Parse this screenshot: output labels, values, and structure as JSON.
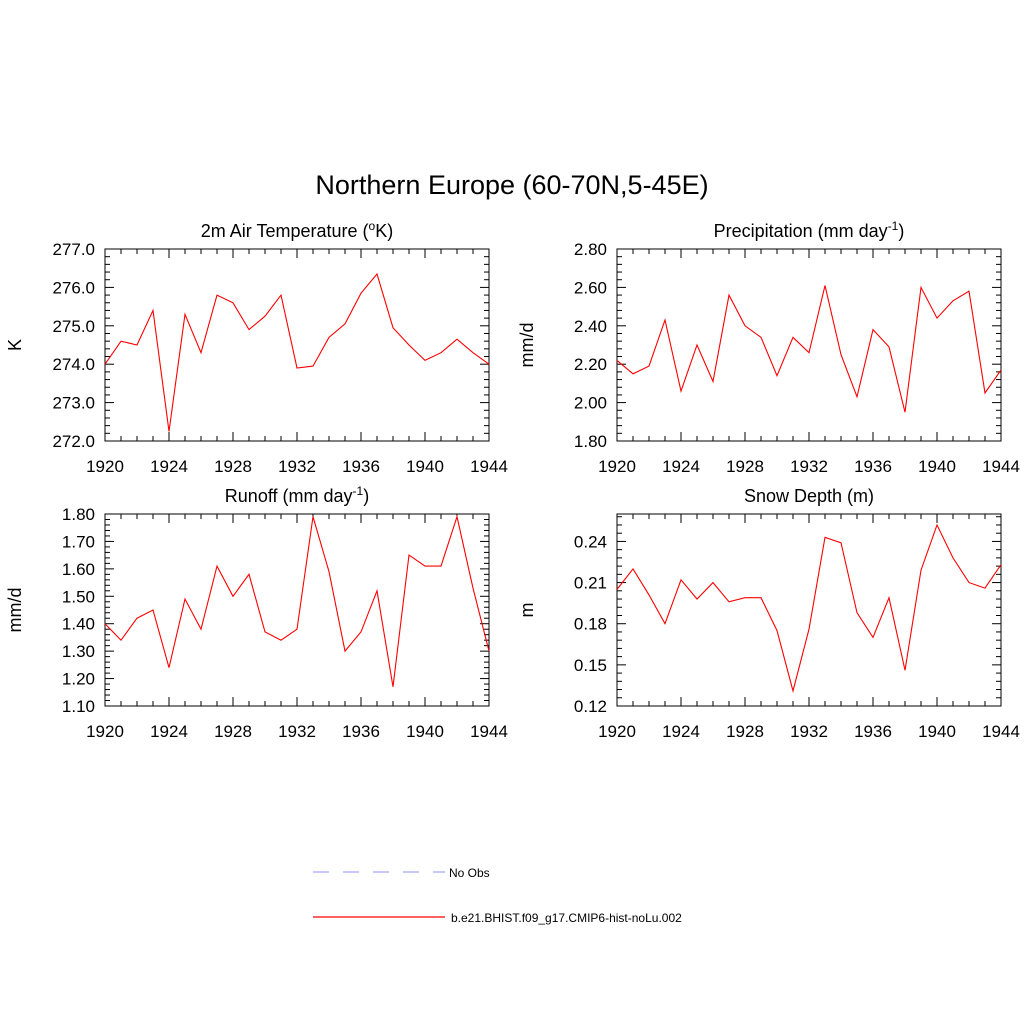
{
  "figure": {
    "title": "Northern Europe (60-70N,5-45E)"
  },
  "colors": {
    "model_line": "#ff0000",
    "obs_line": "#a9a9f5",
    "axis": "#000000",
    "background": "#ffffff"
  },
  "legend": [
    {
      "label": "No Obs",
      "style": "dashed",
      "color": "#a9a9f5"
    },
    {
      "label": "b.e21.BHIST.f09_g17.CMIP6-hist-noLu.002",
      "style": "solid",
      "color": "#ff0000"
    }
  ],
  "chart_data": [
    {
      "type": "line",
      "title": "2m Air Temperature (",
      "title_super": "o",
      "title_after": "K)",
      "xlabel": "",
      "ylabel": "K",
      "xlim": [
        1920,
        1944
      ],
      "ylim": [
        272.0,
        277.0
      ],
      "xticks": [
        "1920",
        "1924",
        "1928",
        "1932",
        "1936",
        "1940",
        "1944"
      ],
      "yticks": [
        "272.0",
        "273.0",
        "274.0",
        "275.0",
        "276.0",
        "277.0"
      ],
      "x": [
        1920,
        1921,
        1922,
        1923,
        1924,
        1925,
        1926,
        1927,
        1928,
        1929,
        1930,
        1931,
        1932,
        1933,
        1934,
        1935,
        1936,
        1937,
        1938,
        1939,
        1940,
        1941,
        1942,
        1943,
        1944
      ],
      "series": [
        {
          "name": "b.e21.BHIST.f09_g17.CMIP6-hist-noLu.002",
          "values": [
            274.0,
            274.6,
            274.5,
            275.4,
            272.25,
            275.3,
            274.3,
            275.8,
            275.6,
            274.9,
            275.25,
            275.8,
            273.9,
            273.95,
            274.7,
            275.05,
            275.85,
            276.35,
            274.95,
            274.5,
            274.1,
            274.3,
            274.65,
            274.3,
            274.0
          ]
        }
      ]
    },
    {
      "type": "line",
      "title": "Precipitation (mm day",
      "title_super": "-1",
      "title_after": ")",
      "xlabel": "",
      "ylabel": "mm/d",
      "xlim": [
        1920,
        1944
      ],
      "ylim": [
        1.8,
        2.8
      ],
      "xticks": [
        "1920",
        "1924",
        "1928",
        "1932",
        "1936",
        "1940",
        "1944"
      ],
      "yticks": [
        "1.80",
        "2.00",
        "2.20",
        "2.40",
        "2.60",
        "2.80"
      ],
      "x": [
        1920,
        1921,
        1922,
        1923,
        1924,
        1925,
        1926,
        1927,
        1928,
        1929,
        1930,
        1931,
        1932,
        1933,
        1934,
        1935,
        1936,
        1937,
        1938,
        1939,
        1940,
        1941,
        1942,
        1943,
        1944
      ],
      "series": [
        {
          "name": "b.e21.BHIST.f09_g17.CMIP6-hist-noLu.002",
          "values": [
            2.22,
            2.15,
            2.19,
            2.43,
            2.06,
            2.3,
            2.11,
            2.56,
            2.4,
            2.34,
            2.14,
            2.34,
            2.26,
            2.61,
            2.25,
            2.03,
            2.38,
            2.29,
            1.95,
            2.6,
            2.44,
            2.53,
            2.58,
            2.05,
            2.17
          ]
        }
      ]
    },
    {
      "type": "line",
      "title": "Runoff (mm day",
      "title_super": "-1",
      "title_after": ")",
      "xlabel": "",
      "ylabel": "mm/d",
      "xlim": [
        1920,
        1944
      ],
      "ylim": [
        1.1,
        1.8
      ],
      "xticks": [
        "1920",
        "1924",
        "1928",
        "1932",
        "1936",
        "1940",
        "1944"
      ],
      "yticks": [
        "1.10",
        "1.20",
        "1.30",
        "1.40",
        "1.50",
        "1.60",
        "1.70",
        "1.80"
      ],
      "x": [
        1920,
        1921,
        1922,
        1923,
        1924,
        1925,
        1926,
        1927,
        1928,
        1929,
        1930,
        1931,
        1932,
        1933,
        1934,
        1935,
        1936,
        1937,
        1938,
        1939,
        1940,
        1941,
        1942,
        1943,
        1944
      ],
      "series": [
        {
          "name": "b.e21.BHIST.f09_g17.CMIP6-hist-noLu.002",
          "values": [
            1.4,
            1.34,
            1.42,
            1.45,
            1.24,
            1.49,
            1.38,
            1.61,
            1.5,
            1.58,
            1.37,
            1.34,
            1.38,
            1.79,
            1.59,
            1.3,
            1.37,
            1.52,
            1.17,
            1.65,
            1.61,
            1.61,
            1.79,
            1.53,
            1.3
          ]
        }
      ]
    },
    {
      "type": "line",
      "title": "Snow Depth (m)",
      "title_super": "",
      "title_after": "",
      "xlabel": "",
      "ylabel": "m",
      "xlim": [
        1920,
        1944
      ],
      "ylim": [
        0.12,
        0.26
      ],
      "xticks": [
        "1920",
        "1924",
        "1928",
        "1932",
        "1936",
        "1940",
        "1944"
      ],
      "yticks": [
        "0.12",
        "0.15",
        "0.18",
        "0.21",
        "0.24"
      ],
      "x": [
        1920,
        1921,
        1922,
        1923,
        1924,
        1925,
        1926,
        1927,
        1928,
        1929,
        1930,
        1931,
        1932,
        1933,
        1934,
        1935,
        1936,
        1937,
        1938,
        1939,
        1940,
        1941,
        1942,
        1943,
        1944
      ],
      "series": [
        {
          "name": "b.e21.BHIST.f09_g17.CMIP6-hist-noLu.002",
          "values": [
            0.205,
            0.22,
            0.201,
            0.18,
            0.212,
            0.198,
            0.21,
            0.196,
            0.199,
            0.199,
            0.175,
            0.131,
            0.176,
            0.243,
            0.239,
            0.188,
            0.17,
            0.199,
            0.146,
            0.219,
            0.252,
            0.228,
            0.21,
            0.206,
            0.223
          ]
        }
      ]
    }
  ]
}
